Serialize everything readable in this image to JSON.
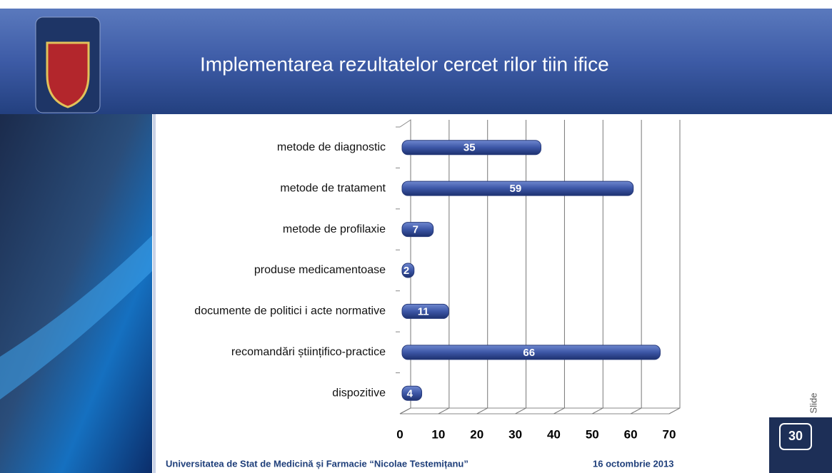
{
  "chart_data": {
    "type": "bar",
    "orientation": "horizontal",
    "title": "Implementarea rezultatelor cercet rilor  tiin ifice",
    "categories": [
      "metode de diagnostic",
      "metode de tratament",
      "metode de profilaxie",
      "produse medicamentoase",
      "documente de politici  i acte normative",
      "recomandări științifico-practice",
      "dispozitive"
    ],
    "values": [
      35,
      59,
      7,
      2,
      11,
      66,
      4
    ],
    "color": "#3c56a6",
    "xlim": [
      0,
      70
    ],
    "xticks": [
      0,
      10,
      20,
      30,
      40,
      50,
      60,
      70
    ],
    "grid": true
  },
  "footer": {
    "institution": "Universitatea de Stat de Medicină și Farmacie “Nicolae Testemițanu”",
    "date": "16 octombrie 2013"
  },
  "slide_label": "Slide",
  "slide_number": "30"
}
